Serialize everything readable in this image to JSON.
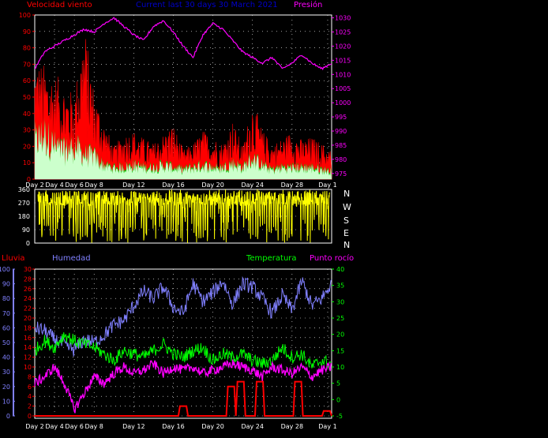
{
  "top_panel": {
    "left_label": "Velocidad viento",
    "title": "Current last 30 days 30 March 2021",
    "right_label": "Presión"
  },
  "wind_dir_panel": {
    "compass": [
      "N",
      "W",
      "S",
      "E",
      "N"
    ]
  },
  "bottom_panel": {
    "label_lluvia": "Lluvia",
    "label_humedad": "Humedad",
    "label_temperatura": "Temperatura",
    "label_punto_rocio": "Punto rocío"
  },
  "x_day_labels": [
    "Day 2",
    "Day 4",
    "Day 6",
    "Day 8",
    "Day 12",
    "Day 16",
    "Day 20",
    "Day 24",
    "Day 28",
    "Day 1"
  ],
  "colors": {
    "wind_gust": "#ff0000",
    "wind_avg": "#00cc00",
    "wind_fill": "#ccffcc",
    "pressure": "#ff00ff",
    "wind_dir": "#ffff00",
    "rain": "#ff0000",
    "humidity": "#8080ff",
    "temperature": "#00ff00",
    "dew_point": "#ff00ff",
    "title": "#0000cc"
  },
  "chart_data": [
    {
      "type": "area",
      "name": "wind_and_pressure",
      "x_label_days": [
        "Day 2",
        "Day 4",
        "Day 6",
        "Day 8",
        "Day 12",
        "Day 16",
        "Day 20",
        "Day 24",
        "Day 28",
        "Day 1"
      ],
      "left_axis": {
        "ticks": [
          0,
          10,
          20,
          30,
          40,
          50,
          60,
          70,
          80,
          90,
          100
        ],
        "ylim": [
          0,
          100
        ]
      },
      "right_axis": {
        "ticks": [
          975,
          980,
          985,
          990,
          995,
          1000,
          1005,
          1010,
          1015,
          1020,
          1025,
          1030
        ],
        "ylim": [
          973,
          1031
        ]
      },
      "pressure": [
        1012,
        1018,
        1020,
        1022,
        1024,
        1026,
        1025,
        1028,
        1030,
        1027,
        1024,
        1022,
        1027,
        1029,
        1025,
        1020,
        1016,
        1024,
        1028,
        1026,
        1022,
        1018,
        1016,
        1014,
        1016,
        1012,
        1014,
        1017,
        1014,
        1012,
        1014
      ],
      "wind_gust_peaks": [
        75,
        70,
        65,
        58,
        52,
        96,
        55,
        35,
        20,
        28,
        30,
        25,
        22,
        28,
        34,
        18,
        22,
        30,
        26,
        22,
        36,
        20,
        48,
        30,
        22,
        25,
        30,
        24,
        26,
        22,
        18
      ],
      "wind_avg_peaks": [
        35,
        40,
        30,
        25,
        30,
        22,
        20,
        12,
        10,
        10,
        12,
        10,
        10,
        12,
        10,
        8,
        10,
        12,
        10,
        10,
        14,
        10,
        18,
        12,
        8,
        10,
        10,
        10,
        10,
        8,
        7
      ]
    },
    {
      "type": "scatter",
      "name": "wind_direction",
      "left_axis": {
        "ticks": [
          0,
          90,
          180,
          270,
          360
        ],
        "ylim": [
          0,
          360
        ]
      }
    },
    {
      "type": "line",
      "name": "rain_humidity_temperature_dewpoint",
      "humidity_axis": {
        "ticks": [
          0,
          10,
          20,
          30,
          40,
          50,
          60,
          70,
          80,
          90,
          100
        ],
        "ylim": [
          0,
          100
        ]
      },
      "rain_axis": {
        "ticks": [
          0,
          2,
          4,
          6,
          8,
          10,
          12,
          14,
          16,
          18,
          20,
          22,
          24,
          26,
          28,
          30
        ],
        "ylim": [
          0,
          30
        ]
      },
      "temp_axis": {
        "ticks": [
          -5,
          0,
          5,
          10,
          15,
          20,
          25,
          30,
          35,
          40
        ],
        "ylim": [
          -5,
          40
        ]
      },
      "humidity": [
        60,
        58,
        52,
        48,
        45,
        52,
        50,
        55,
        62,
        65,
        75,
        85,
        80,
        88,
        74,
        70,
        90,
        78,
        84,
        92,
        76,
        90,
        88,
        80,
        70,
        82,
        72,
        92,
        75,
        80,
        90
      ],
      "temperature": [
        15,
        18,
        16,
        20,
        18,
        17,
        16,
        14,
        12,
        15,
        14,
        13,
        15,
        17,
        14,
        13,
        15,
        16,
        12,
        14,
        13,
        14,
        12,
        11,
        12,
        16,
        13,
        14,
        10,
        12,
        11
      ],
      "dew_point": [
        5,
        7,
        10,
        5,
        -3,
        2,
        7,
        5,
        8,
        10,
        8,
        9,
        11,
        8,
        10,
        9,
        10,
        8,
        9,
        10,
        11,
        10,
        9,
        7,
        10,
        9,
        8,
        10,
        7,
        9,
        10
      ],
      "rain": [
        0,
        0,
        0,
        0,
        0,
        0,
        0,
        0,
        0,
        0,
        0,
        0,
        0,
        0,
        0,
        2,
        0,
        0,
        0,
        0,
        6,
        7,
        0,
        7,
        0,
        0,
        0,
        7,
        0,
        0,
        1
      ]
    }
  ]
}
